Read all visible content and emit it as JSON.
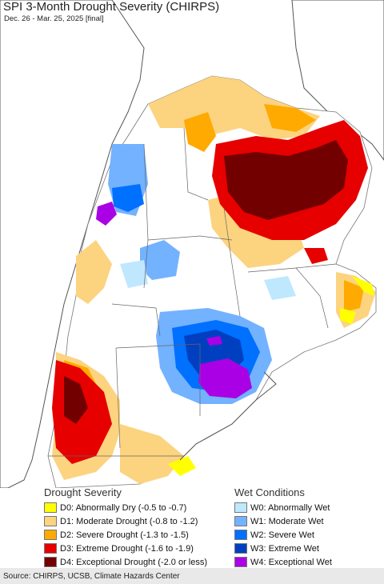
{
  "header": {
    "title": "SPI 3-Month Drought Severity (CHIRPS)",
    "subtitle": "Dec. 26 - Mar. 25, 2025 [final]"
  },
  "legend": {
    "drought_heading": "Drought Severity",
    "wet_heading": "Wet Conditions",
    "drought_items": [
      {
        "label": "D0: Abnormally Dry (-0.5 to -0.7)",
        "color": "#ffff00"
      },
      {
        "label": "D1: Moderate Drought (-0.8 to -1.2)",
        "color": "#fcd37f"
      },
      {
        "label": "D2: Severe Drought (-1.3 to -1.5)",
        "color": "#ffaa00"
      },
      {
        "label": "D3: Extreme Drought (-1.6 to -1.9)",
        "color": "#e60000"
      },
      {
        "label": "D4: Exceptional Drought (-2.0 or less)",
        "color": "#730000"
      }
    ],
    "wet_items": [
      {
        "label": "W0: Abnormally Wet",
        "color": "#bfe8ff"
      },
      {
        "label": "W1: Moderate Wet",
        "color": "#73b2ff"
      },
      {
        "label": "W2: Severe Wet",
        "color": "#0070ff"
      },
      {
        "label": "W3: Extreme Wet",
        "color": "#0040c0"
      },
      {
        "label": "W4: Exceptional Wet",
        "color": "#aa00e6"
      }
    ]
  },
  "footer": {
    "source": "Source: CHIRPS, UCSB, Climate Hazards Center"
  }
}
